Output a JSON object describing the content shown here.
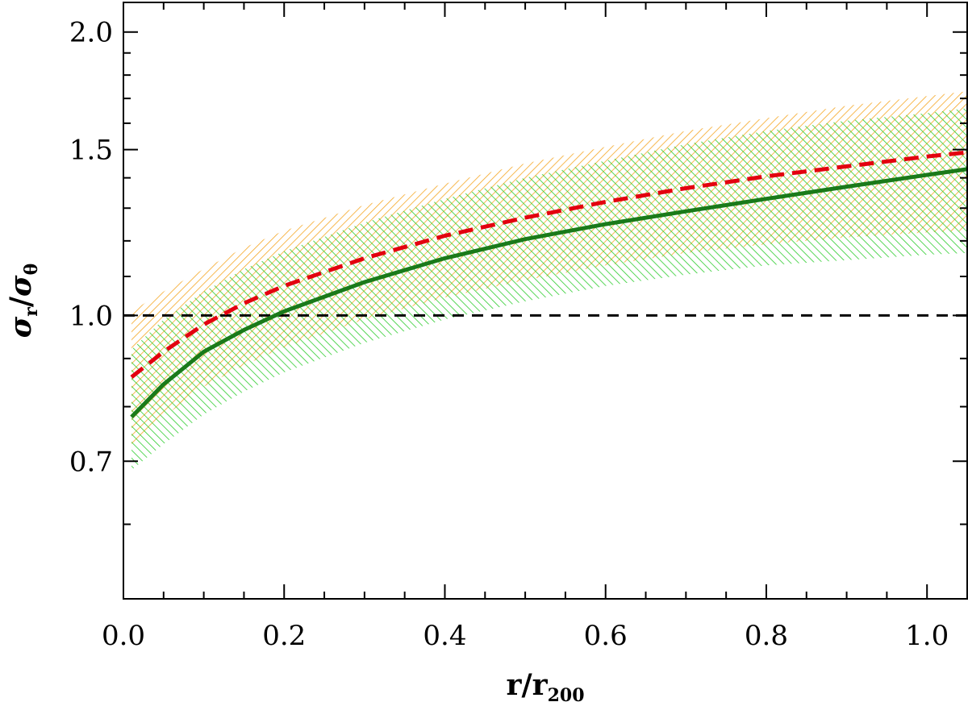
{
  "chart_data": {
    "type": "line",
    "xlabel": {
      "main": "r/r",
      "sub": "200"
    },
    "ylabel": {
      "sigma": "σ",
      "r_sub": "r",
      "slash": "/",
      "sigma2": "σ",
      "theta_sub": "θ"
    },
    "x_ticks": [
      "0.0",
      "0.2",
      "0.4",
      "0.6",
      "0.8",
      "1.0"
    ],
    "y_ticks": [
      "0.7",
      "1.0",
      "1.5",
      "2.0"
    ],
    "xlim": [
      0.0,
      1.05
    ],
    "ylim": [
      0.5,
      2.15
    ],
    "y_scale": "log",
    "grid": false,
    "reference_line": {
      "y": 1.0,
      "style": "dashed",
      "color": "#000000"
    },
    "x": [
      0.01,
      0.05,
      0.1,
      0.15,
      0.2,
      0.3,
      0.4,
      0.5,
      0.6,
      0.7,
      0.8,
      0.9,
      1.0,
      1.05
    ],
    "series": [
      {
        "style": "dashed",
        "color": "#e3000f",
        "values": [
          0.86,
          0.915,
          0.978,
          1.03,
          1.075,
          1.15,
          1.215,
          1.27,
          1.32,
          1.365,
          1.405,
          1.44,
          1.475,
          1.49
        ],
        "band_upper": [
          1.01,
          1.06,
          1.12,
          1.18,
          1.23,
          1.31,
          1.38,
          1.45,
          1.51,
          1.57,
          1.62,
          1.67,
          1.71,
          1.73
        ],
        "band_lower": [
          0.73,
          0.78,
          0.84,
          0.885,
          0.925,
          0.99,
          1.045,
          1.09,
          1.13,
          1.165,
          1.19,
          1.21,
          1.225,
          1.23
        ],
        "band_color": "#f5a623"
      },
      {
        "style": "solid",
        "color": "#1a7a1a",
        "values": [
          0.78,
          0.845,
          0.915,
          0.965,
          1.01,
          1.085,
          1.15,
          1.205,
          1.25,
          1.29,
          1.33,
          1.37,
          1.41,
          1.43
        ],
        "band_upper": [
          0.92,
          0.99,
          1.06,
          1.12,
          1.17,
          1.255,
          1.33,
          1.4,
          1.46,
          1.52,
          1.57,
          1.61,
          1.64,
          1.66
        ],
        "band_lower": [
          0.685,
          0.73,
          0.785,
          0.83,
          0.87,
          0.935,
          0.99,
          1.035,
          1.075,
          1.105,
          1.13,
          1.145,
          1.16,
          1.165
        ],
        "band_color": "#2ecc2e"
      }
    ]
  }
}
